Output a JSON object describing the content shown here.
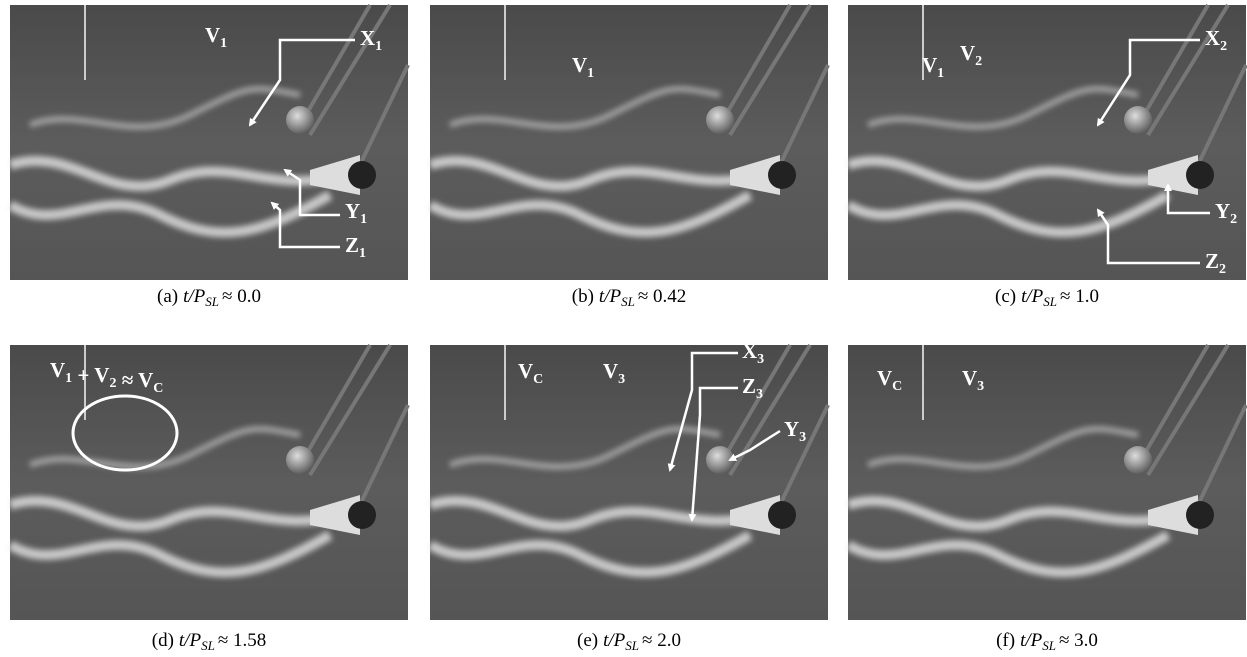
{
  "panels": [
    {
      "caption": {
        "letter": "(a)",
        "expr": "t/P",
        "sub": "SL",
        "value": "≈ 0.0"
      },
      "labels": [
        [
          {
            "text": "V",
            "sub": "1"
          }
        ],
        [
          {
            "text": "X",
            "sub": "1"
          }
        ],
        [
          {
            "text": "Y",
            "sub": "1"
          }
        ],
        [
          {
            "text": "Z",
            "sub": "1"
          }
        ]
      ]
    },
    {
      "caption": {
        "letter": "(b)",
        "expr": "t/P",
        "sub": "SL",
        "value": "≈ 0.42"
      },
      "labels": [
        [
          {
            "text": "V",
            "sub": "1"
          }
        ]
      ]
    },
    {
      "caption": {
        "letter": "(c)",
        "expr": "t/P",
        "sub": "SL",
        "value": "≈ 1.0"
      },
      "labels": [
        [
          {
            "text": "V",
            "sub": "1"
          }
        ],
        [
          {
            "text": "V",
            "sub": "2"
          }
        ],
        [
          {
            "text": "X",
            "sub": "2"
          }
        ],
        [
          {
            "text": "Y",
            "sub": "2"
          }
        ],
        [
          {
            "text": "Z",
            "sub": "2"
          }
        ]
      ]
    },
    {
      "caption": {
        "letter": "(d)",
        "expr": "t/P",
        "sub": "SL",
        "value": "≈ 1.58"
      },
      "labels": [
        [
          {
            "text": "V",
            "sub": "1"
          },
          {
            "text": " + V",
            "sub": "2"
          },
          {
            "text": " ≈ V",
            "sub": "C"
          }
        ]
      ]
    },
    {
      "caption": {
        "letter": "(e)",
        "expr": "t/P",
        "sub": "SL",
        "value": "≈ 2.0"
      },
      "labels": [
        [
          {
            "text": "V",
            "sub": "C"
          }
        ],
        [
          {
            "text": "V",
            "sub": "3"
          }
        ],
        [
          {
            "text": "X",
            "sub": "3"
          }
        ],
        [
          {
            "text": "Z",
            "sub": "3"
          }
        ],
        [
          {
            "text": "Y",
            "sub": "3"
          }
        ]
      ]
    },
    {
      "caption": {
        "letter": "(f)",
        "expr": "t/P",
        "sub": "SL",
        "value": "≈ 3.0"
      },
      "labels": [
        [
          {
            "text": "V",
            "sub": "C"
          }
        ],
        [
          {
            "text": "V",
            "sub": "3"
          }
        ]
      ]
    }
  ]
}
